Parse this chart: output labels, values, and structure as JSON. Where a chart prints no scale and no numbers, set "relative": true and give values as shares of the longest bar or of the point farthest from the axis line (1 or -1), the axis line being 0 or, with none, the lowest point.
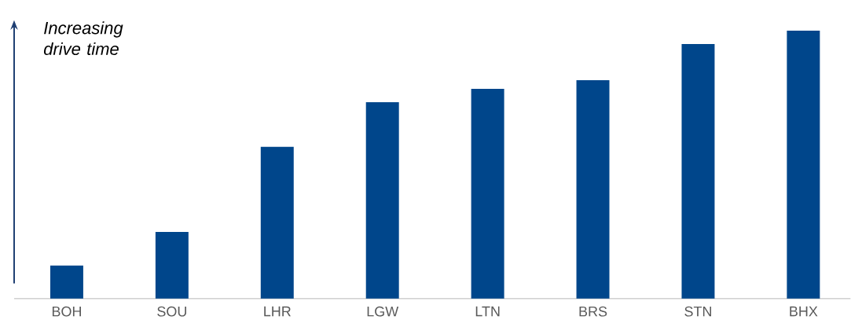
{
  "chart_data": {
    "type": "bar",
    "relative": true,
    "categories": [
      "BOH",
      "SOU",
      "LHR",
      "LGW",
      "LTN",
      "BRS",
      "STN",
      "BHX"
    ],
    "values": [
      0.123,
      0.249,
      0.566,
      0.733,
      0.783,
      0.815,
      0.95,
      1
    ],
    "color": "#00468b",
    "annotations": [
      "Increasing drive time"
    ]
  }
}
